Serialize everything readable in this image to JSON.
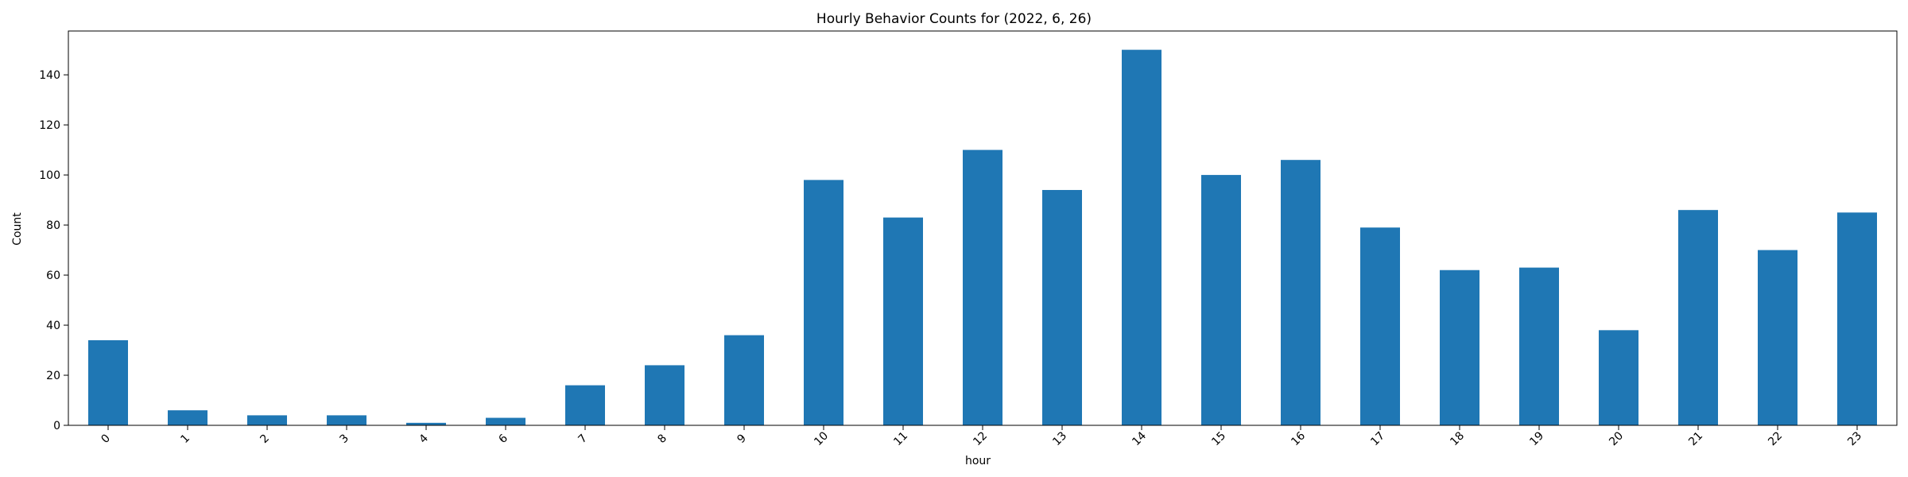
{
  "chart_data": {
    "type": "bar",
    "title": "Hourly Behavior Counts for (2022, 6, 26)",
    "xlabel": "hour",
    "ylabel": "Count",
    "categories": [
      "0",
      "1",
      "2",
      "3",
      "4",
      "6",
      "7",
      "8",
      "9",
      "10",
      "11",
      "12",
      "13",
      "14",
      "15",
      "16",
      "17",
      "18",
      "19",
      "20",
      "21",
      "22",
      "23"
    ],
    "values": [
      34,
      6,
      4,
      4,
      1,
      3,
      16,
      24,
      36,
      98,
      83,
      110,
      94,
      150,
      100,
      106,
      79,
      62,
      63,
      38,
      86,
      70,
      85
    ],
    "ylim": [
      0,
      157.5
    ],
    "yticks": [
      0,
      20,
      40,
      60,
      80,
      100,
      120,
      140
    ],
    "bar_color": "#1f77b4",
    "grid": false,
    "legend": "none"
  }
}
